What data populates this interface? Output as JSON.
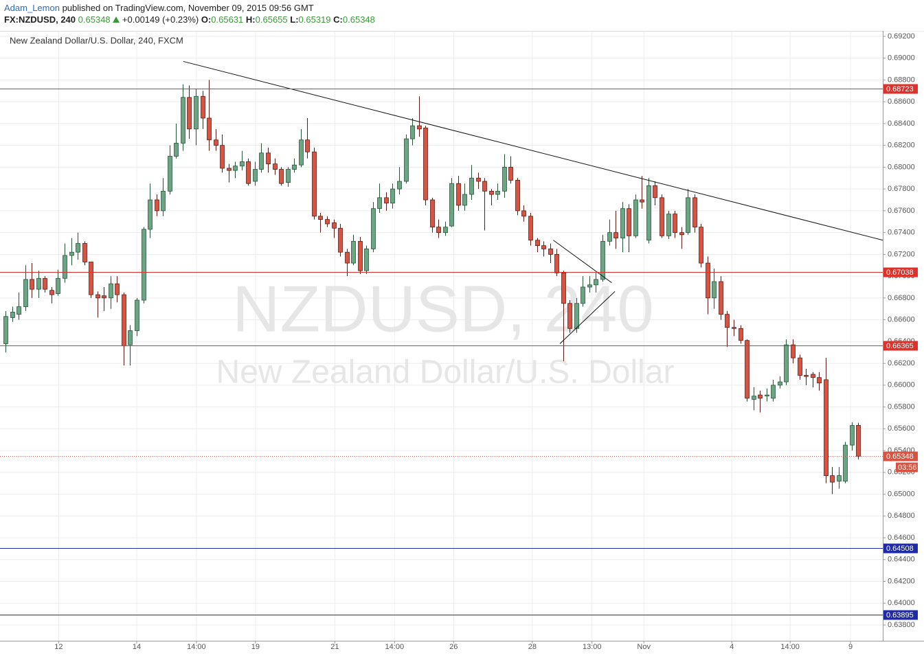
{
  "header": {
    "author": "Adam_Lemon",
    "published": "published on TradingView.com, November 09, 2015 09:56 GMT",
    "symbol": "FX:NZDUSD, 240",
    "change": "+0.00149 (+0.23%)",
    "ohlc_labels": [
      "O:",
      "H:",
      "L:",
      "C:"
    ]
  },
  "chart_data": {
    "type": "candlestick",
    "title": "New Zealand Dollar/U.S. Dollar, 240, FXCM",
    "watermark": [
      "NZDUSD, 240",
      "New Zealand Dollar/U.S. Dollar"
    ],
    "up_color": "#6ba583",
    "down_color": "#d75442",
    "grid": true,
    "open": [
      0.6638,
      0.6662,
      0.6665,
      0.6672,
      0.6697,
      0.6688,
      0.6698,
      0.6687,
      0.6684,
      0.6698,
      0.6719,
      0.6722,
      0.673,
      0.6713,
      0.6683,
      0.6682,
      0.668,
      0.6693,
      0.6683,
      0.6637,
      0.665,
      0.6678,
      0.6743,
      0.677,
      0.676,
      0.6778,
      0.681,
      0.6822,
      0.6864,
      0.6835,
      0.6865,
      0.6845,
      0.6825,
      0.682,
      0.6799,
      0.6797,
      0.6801,
      0.6805,
      0.6787,
      0.6798,
      0.6813,
      0.6803,
      0.6798,
      0.6786,
      0.6798,
      0.6802,
      0.6825,
      0.6814,
      0.6755,
      0.6752,
      0.6749,
      0.6744,
      0.6722,
      0.6712,
      0.6732,
      0.6705,
      0.6725,
      0.6762,
      0.6772,
      0.6767,
      0.678,
      0.6787,
      0.6826,
      0.6838,
      0.6836,
      0.677,
      0.6745,
      0.674,
      0.6746,
      0.6785,
      0.6765,
      0.6775,
      0.679,
      0.6787,
      0.6778,
      0.6775,
      0.6778,
      0.68,
      0.6788,
      0.676,
      0.6755,
      0.6733,
      0.6728,
      0.6725,
      0.672,
      0.6703,
      0.6675,
      0.6652,
      0.6675,
      0.669,
      0.6692,
      0.6697,
      0.6732,
      0.674,
      0.6735,
      0.6762,
      0.6737,
      0.677,
      0.6733,
      0.6783,
      0.6772,
      0.6737,
      0.6757,
      0.674,
      0.674,
      0.6772,
      0.6745,
      0.6712,
      0.668,
      0.6695,
      0.6665,
      0.6653,
      0.6652,
      0.6641,
      0.6587,
      0.6591,
      0.659,
      0.6588,
      0.66,
      0.6603,
      0.6637,
      0.6625,
      0.6609,
      0.661,
      0.6607,
      0.6605,
      0.6517,
      0.6512,
      0.6512,
      0.6545,
      0.65631
    ],
    "high": [
      0.6668,
      0.6672,
      0.6685,
      0.671,
      0.6712,
      0.6705,
      0.67,
      0.669,
      0.6706,
      0.673,
      0.6735,
      0.674,
      0.6732,
      0.6713,
      0.6686,
      0.669,
      0.67,
      0.67,
      0.6685,
      0.6655,
      0.668,
      0.6745,
      0.6785,
      0.6775,
      0.679,
      0.682,
      0.684,
      0.6876,
      0.6875,
      0.6872,
      0.687,
      0.688,
      0.6835,
      0.683,
      0.6803,
      0.6805,
      0.6815,
      0.6808,
      0.6805,
      0.6822,
      0.6818,
      0.6808,
      0.68,
      0.68,
      0.6808,
      0.6835,
      0.6845,
      0.6818,
      0.6758,
      0.6755,
      0.6752,
      0.6748,
      0.6725,
      0.6738,
      0.6736,
      0.6728,
      0.6768,
      0.6785,
      0.6777,
      0.6785,
      0.68,
      0.683,
      0.6845,
      0.6865,
      0.6838,
      0.6772,
      0.6752,
      0.675,
      0.679,
      0.6792,
      0.6785,
      0.6802,
      0.6795,
      0.679,
      0.678,
      0.6785,
      0.6812,
      0.681,
      0.679,
      0.6765,
      0.6758,
      0.6735,
      0.6732,
      0.673,
      0.6725,
      0.6705,
      0.6678,
      0.668,
      0.67,
      0.67,
      0.6703,
      0.6738,
      0.6752,
      0.676,
      0.6768,
      0.6766,
      0.6775,
      0.6792,
      0.679,
      0.6787,
      0.6775,
      0.676,
      0.676,
      0.6745,
      0.678,
      0.6775,
      0.6748,
      0.6718,
      0.6707,
      0.67,
      0.6668,
      0.666,
      0.6655,
      0.6642,
      0.6598,
      0.6595,
      0.6597,
      0.6605,
      0.6608,
      0.6642,
      0.6642,
      0.6628,
      0.6615,
      0.6612,
      0.6612,
      0.6625,
      0.6525,
      0.6525,
      0.6548,
      0.6566,
      0.65655
    ],
    "low": [
      0.663,
      0.6658,
      0.666,
      0.6668,
      0.668,
      0.668,
      0.6685,
      0.6675,
      0.6682,
      0.6694,
      0.671,
      0.6715,
      0.671,
      0.668,
      0.6662,
      0.6668,
      0.667,
      0.6676,
      0.6618,
      0.6618,
      0.6645,
      0.6675,
      0.6735,
      0.6755,
      0.6755,
      0.6775,
      0.6808,
      0.6815,
      0.6826,
      0.682,
      0.6835,
      0.6815,
      0.6815,
      0.6795,
      0.6786,
      0.679,
      0.6797,
      0.6783,
      0.6783,
      0.6795,
      0.6795,
      0.6793,
      0.6783,
      0.6782,
      0.6795,
      0.68,
      0.6808,
      0.6752,
      0.674,
      0.6745,
      0.6735,
      0.6718,
      0.67,
      0.671,
      0.6702,
      0.6702,
      0.6722,
      0.6758,
      0.676,
      0.6762,
      0.6775,
      0.6785,
      0.682,
      0.6828,
      0.6765,
      0.674,
      0.6735,
      0.6737,
      0.6745,
      0.676,
      0.676,
      0.677,
      0.678,
      0.6742,
      0.6765,
      0.677,
      0.6772,
      0.6785,
      0.6756,
      0.675,
      0.6728,
      0.6722,
      0.6718,
      0.6712,
      0.67,
      0.6622,
      0.6648,
      0.6648,
      0.6672,
      0.6685,
      0.6685,
      0.6695,
      0.6728,
      0.6725,
      0.6722,
      0.6722,
      0.6735,
      0.6762,
      0.673,
      0.6765,
      0.6735,
      0.6734,
      0.6735,
      0.6725,
      0.6738,
      0.674,
      0.6708,
      0.6665,
      0.667,
      0.666,
      0.6635,
      0.6645,
      0.6638,
      0.6585,
      0.6577,
      0.6575,
      0.6585,
      0.6585,
      0.6597,
      0.66,
      0.662,
      0.6605,
      0.66,
      0.6598,
      0.6595,
      0.651,
      0.65,
      0.6505,
      0.651,
      0.654,
      0.65319
    ],
    "close": [
      0.6663,
      0.6667,
      0.6672,
      0.6697,
      0.6688,
      0.6698,
      0.6688,
      0.6683,
      0.6698,
      0.6719,
      0.6722,
      0.673,
      0.6713,
      0.6683,
      0.668,
      0.668,
      0.6693,
      0.6683,
      0.6636,
      0.665,
      0.6678,
      0.6743,
      0.677,
      0.676,
      0.6778,
      0.681,
      0.6822,
      0.6864,
      0.6835,
      0.6865,
      0.6845,
      0.6825,
      0.682,
      0.6799,
      0.6797,
      0.6801,
      0.6805,
      0.6785,
      0.6798,
      0.6813,
      0.6803,
      0.6798,
      0.6785,
      0.6798,
      0.6802,
      0.6825,
      0.6814,
      0.6755,
      0.6752,
      0.6748,
      0.6744,
      0.6722,
      0.6712,
      0.6732,
      0.6705,
      0.6725,
      0.6762,
      0.6772,
      0.6767,
      0.678,
      0.6787,
      0.6826,
      0.6838,
      0.6835,
      0.677,
      0.6745,
      0.674,
      0.6745,
      0.6785,
      0.6765,
      0.6775,
      0.679,
      0.6787,
      0.6778,
      0.6775,
      0.6778,
      0.68,
      0.6788,
      0.676,
      0.6755,
      0.6733,
      0.6728,
      0.6725,
      0.672,
      0.6703,
      0.6675,
      0.6652,
      0.6675,
      0.669,
      0.6692,
      0.6697,
      0.6732,
      0.674,
      0.6735,
      0.6762,
      0.6737,
      0.677,
      0.6768,
      0.6783,
      0.6772,
      0.6737,
      0.6757,
      0.674,
      0.6738,
      0.6772,
      0.6745,
      0.6712,
      0.668,
      0.6695,
      0.6665,
      0.6653,
      0.6652,
      0.6641,
      0.6588,
      0.659,
      0.6588,
      0.6591,
      0.66,
      0.6603,
      0.6637,
      0.6625,
      0.6609,
      0.6608,
      0.6607,
      0.6602,
      0.6517,
      0.6511,
      0.6517,
      0.6545,
      0.6563,
      0.65348
    ],
    "xlim": [
      -0.84,
      133.72
    ],
    "xticks": [
      {
        "value": 8.1,
        "label": "12"
      },
      {
        "value": 20,
        "label": "14"
      },
      {
        "value": 29.1,
        "label": "14:00"
      },
      {
        "value": 38.1,
        "label": "19"
      },
      {
        "value": 50.2,
        "label": "21"
      },
      {
        "value": 59.3,
        "label": "14:00"
      },
      {
        "value": 68.3,
        "label": "26"
      },
      {
        "value": 80.3,
        "label": "28"
      },
      {
        "value": 89.4,
        "label": "13:00"
      },
      {
        "value": 97.3,
        "label": "Nov"
      },
      {
        "value": 110.7,
        "label": "4"
      },
      {
        "value": 119.6,
        "label": "14:00"
      },
      {
        "value": 128.8,
        "label": "9"
      }
    ],
    "ylim": [
      0.63655,
      0.6925
    ],
    "yticks": [
      {
        "value": 0.638,
        "label": "0.63800"
      },
      {
        "value": 0.64,
        "label": "0.64000"
      },
      {
        "value": 0.642,
        "label": "0.64200"
      },
      {
        "value": 0.644,
        "label": "0.64400"
      },
      {
        "value": 0.646,
        "label": "0.64600"
      },
      {
        "value": 0.648,
        "label": "0.64800"
      },
      {
        "value": 0.65,
        "label": "0.65000"
      },
      {
        "value": 0.652,
        "label": "0.65200"
      },
      {
        "value": 0.654,
        "label": "0.65400"
      },
      {
        "value": 0.656,
        "label": "0.65600"
      },
      {
        "value": 0.658,
        "label": "0.65800"
      },
      {
        "value": 0.66,
        "label": "0.66000"
      },
      {
        "value": 0.662,
        "label": "0.66200"
      },
      {
        "value": 0.664,
        "label": "0.66400"
      },
      {
        "value": 0.666,
        "label": "0.66600"
      },
      {
        "value": 0.668,
        "label": "0.66800"
      },
      {
        "value": 0.67,
        "label": "0.67000"
      },
      {
        "value": 0.672,
        "label": "0.67200"
      },
      {
        "value": 0.674,
        "label": "0.67400"
      },
      {
        "value": 0.676,
        "label": "0.67600"
      },
      {
        "value": 0.678,
        "label": "0.67800"
      },
      {
        "value": 0.68,
        "label": "0.68000"
      },
      {
        "value": 0.682,
        "label": "0.68200"
      },
      {
        "value": 0.684,
        "label": "0.68400"
      },
      {
        "value": 0.686,
        "label": "0.68600"
      },
      {
        "value": 0.688,
        "label": "0.68800"
      },
      {
        "value": 0.69,
        "label": "0.69000"
      },
      {
        "value": 0.692,
        "label": "0.69200"
      }
    ],
    "levels": [
      {
        "value": 0.68723,
        "color": "#e0302a"
      },
      {
        "value": 0.67038,
        "color": "#e0302a"
      },
      {
        "value": 0.66365,
        "color": "#e0302a"
      },
      {
        "value": 0.64508,
        "color": "#1f2aa8"
      },
      {
        "value": 0.63895,
        "color": "#1f2aa8"
      }
    ],
    "countdown": "03:56",
    "trendlines": [
      {
        "x": [
          27.1,
          133.72
        ],
        "y": [
          0.6897,
          0.6733
        ]
      },
      {
        "x": [
          83.5,
          92.4
        ],
        "y": [
          0.6733,
          0.6694
        ]
      },
      {
        "x": [
          84.5,
          92.9
        ],
        "y": [
          0.6638,
          0.6686
        ]
      }
    ]
  }
}
